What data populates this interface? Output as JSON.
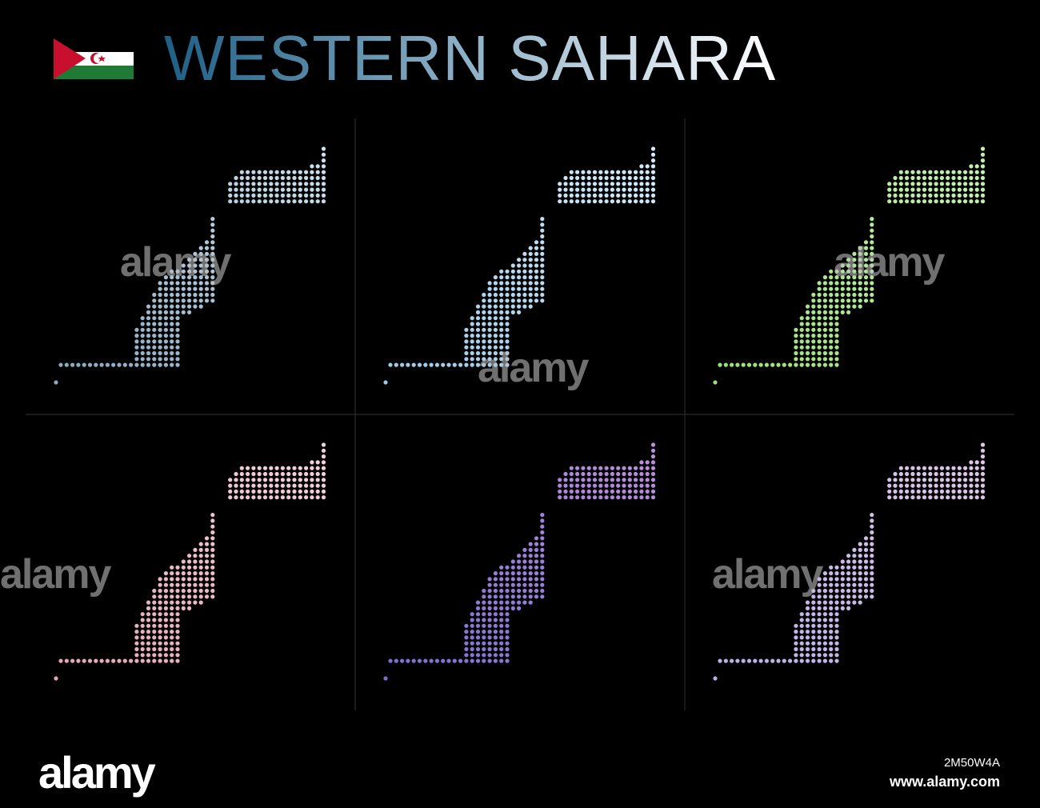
{
  "header": {
    "title": "WESTERN SAHARA"
  },
  "watermark": {
    "brand": "alamy"
  },
  "footer": {
    "image_id": "2M50W4A",
    "url": "www.alamy.com"
  }
}
